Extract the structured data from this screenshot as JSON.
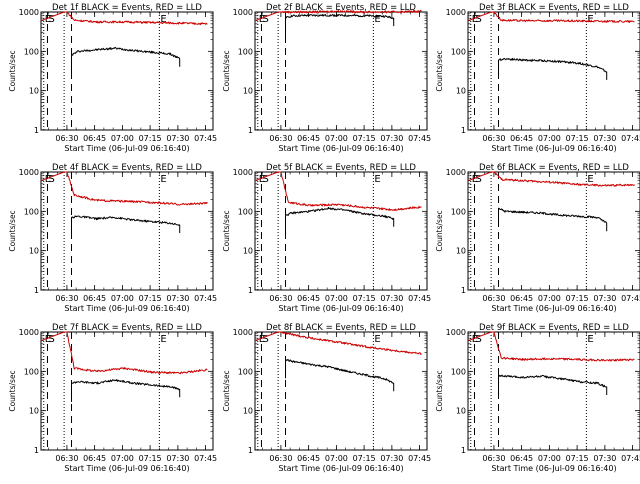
{
  "colors": {
    "events": "#000000",
    "lld": "#cc0000",
    "axes": "#000000",
    "background": "#ffffff"
  },
  "common": {
    "ylabel": "Counts/sec",
    "xlabel": "Start Time (06-Jul-09 06:16:40)",
    "xtick_labels": [
      "06:30",
      "06:45",
      "07:00",
      "07:15",
      "07:30",
      "07:45"
    ],
    "ytick_labels": [
      "1",
      "10",
      "100",
      "1000"
    ],
    "marker_labels": [
      "E",
      "S",
      "E"
    ]
  },
  "chart_data": [
    {
      "type": "line",
      "title": "Det 1f BLACK = Events, RED = LLD",
      "xlabel": "Start Time (06-Jul-09 06:16:40)",
      "ylabel": "Counts/sec",
      "ylog": true,
      "ylim": [
        1,
        1000
      ],
      "xlim_min": [
        0,
        93
      ],
      "x_markers_min": [
        1.5,
        3.5,
        12.5,
        64
      ],
      "x_dotted_min": [
        1.5,
        12.5,
        64
      ],
      "x_dashed_min": [
        3.5,
        16.5
      ],
      "series": [
        {
          "name": "Events",
          "x_min": [
            16.5,
            20,
            30,
            40,
            50,
            60,
            70,
            75
          ],
          "y": [
            80,
            100,
            110,
            120,
            105,
            95,
            85,
            65
          ]
        },
        {
          "name": "LLD",
          "x_min": [
            14,
            18,
            30,
            45,
            60,
            75,
            90
          ],
          "y": [
            1000,
            620,
            560,
            560,
            540,
            520,
            500
          ]
        }
      ]
    },
    {
      "type": "line",
      "title": "Det 2f BLACK = Events, RED = LLD",
      "xlabel": "Start Time (06-Jul-09 06:16:40)",
      "ylabel": "Counts/sec",
      "ylog": true,
      "ylim": [
        1,
        1000
      ],
      "xlim_min": [
        0,
        93
      ],
      "x_markers_min": [
        1.5,
        3.5,
        12.5,
        64
      ],
      "x_dotted_min": [
        1.5,
        12.5,
        64
      ],
      "x_dashed_min": [
        3.5,
        16.5
      ],
      "series": [
        {
          "name": "Events",
          "x_min": [
            16.5,
            20,
            30,
            45,
            60,
            70,
            75
          ],
          "y": [
            700,
            800,
            820,
            820,
            800,
            780,
            700
          ]
        },
        {
          "name": "LLD",
          "x_min": [
            14,
            18,
            30,
            45,
            60,
            75,
            90
          ],
          "y": [
            1000,
            1000,
            1000,
            1050,
            1000,
            1000,
            1050
          ]
        }
      ]
    },
    {
      "type": "line",
      "title": "Det 3f BLACK = Events, RED = LLD",
      "xlabel": "Start Time (06-Jul-09 06:16:40)",
      "ylabel": "Counts/sec",
      "ylog": true,
      "ylim": [
        1,
        1000
      ],
      "xlim_min": [
        0,
        93
      ],
      "x_markers_min": [
        1.5,
        3.5,
        12.5,
        64
      ],
      "x_dotted_min": [
        1.5,
        12.5,
        64
      ],
      "x_dashed_min": [
        3.5,
        16.5
      ],
      "series": [
        {
          "name": "Events",
          "x_min": [
            16.5,
            20,
            30,
            40,
            50,
            60,
            70,
            75
          ],
          "y": [
            60,
            65,
            60,
            58,
            55,
            50,
            40,
            30
          ]
        },
        {
          "name": "LLD",
          "x_min": [
            14,
            18,
            30,
            45,
            60,
            75,
            90
          ],
          "y": [
            1000,
            620,
            600,
            600,
            590,
            580,
            570
          ]
        }
      ]
    },
    {
      "type": "line",
      "title": "Det 4f BLACK = Events, RED = LLD",
      "xlabel": "Start Time (06-Jul-09 06:16:40)",
      "ylabel": "Counts/sec",
      "ylog": true,
      "ylim": [
        1,
        1000
      ],
      "xlim_min": [
        0,
        93
      ],
      "x_markers_min": [
        1.5,
        3.5,
        12.5,
        64
      ],
      "x_dotted_min": [
        1.5,
        12.5,
        64
      ],
      "x_dashed_min": [
        3.5,
        16.5
      ],
      "series": [
        {
          "name": "Events",
          "x_min": [
            16.5,
            20,
            30,
            40,
            50,
            60,
            70,
            75
          ],
          "y": [
            70,
            75,
            65,
            70,
            60,
            55,
            50,
            45
          ]
        },
        {
          "name": "LLD",
          "x_min": [
            14,
            18,
            30,
            45,
            60,
            75,
            90
          ],
          "y": [
            1000,
            260,
            190,
            180,
            170,
            150,
            160
          ]
        }
      ]
    },
    {
      "type": "line",
      "title": "Det 5f BLACK = Events, RED = LLD",
      "xlabel": "Start Time (06-Jul-09 06:16:40)",
      "ylabel": "Counts/sec",
      "ylog": true,
      "ylim": [
        1,
        1000
      ],
      "xlim_min": [
        0,
        93
      ],
      "x_markers_min": [
        1.5,
        3.5,
        12.5,
        64
      ],
      "x_dotted_min": [
        1.5,
        12.5,
        64
      ],
      "x_dashed_min": [
        3.5,
        16.5
      ],
      "series": [
        {
          "name": "Events",
          "x_min": [
            16.5,
            20,
            30,
            40,
            50,
            60,
            70,
            75
          ],
          "y": [
            80,
            90,
            100,
            120,
            105,
            85,
            75,
            65
          ]
        },
        {
          "name": "LLD",
          "x_min": [
            14,
            18,
            30,
            45,
            60,
            75,
            90
          ],
          "y": [
            1000,
            170,
            140,
            150,
            125,
            110,
            130
          ]
        }
      ]
    },
    {
      "type": "line",
      "title": "Det 6f BLACK = Events, RED = LLD",
      "xlabel": "Start Time (06-Jul-09 06:16:40)",
      "ylabel": "Counts/sec",
      "ylog": true,
      "ylim": [
        1,
        1000
      ],
      "xlim_min": [
        0,
        93
      ],
      "x_markers_min": [
        1.5,
        3.5,
        12.5,
        64
      ],
      "x_dotted_min": [
        1.5,
        12.5,
        64
      ],
      "x_dashed_min": [
        3.5,
        16.5
      ],
      "series": [
        {
          "name": "Events",
          "x_min": [
            16.5,
            20,
            30,
            40,
            50,
            60,
            70,
            75
          ],
          "y": [
            120,
            100,
            95,
            90,
            80,
            75,
            70,
            50
          ]
        },
        {
          "name": "LLD",
          "x_min": [
            14,
            18,
            30,
            45,
            60,
            75,
            90
          ],
          "y": [
            1000,
            650,
            600,
            550,
            480,
            450,
            480
          ]
        }
      ]
    },
    {
      "type": "line",
      "title": "Det 7f BLACK = Events, RED = LLD",
      "xlabel": "Start Time (06-Jul-09 06:16:40)",
      "ylabel": "Counts/sec",
      "ylog": true,
      "ylim": [
        1,
        1000
      ],
      "xlim_min": [
        0,
        93
      ],
      "x_markers_min": [
        1.5,
        3.5,
        12.5,
        64
      ],
      "x_dotted_min": [
        1.5,
        12.5,
        64
      ],
      "x_dashed_min": [
        3.5,
        16.5
      ],
      "series": [
        {
          "name": "Events",
          "x_min": [
            16.5,
            20,
            30,
            40,
            50,
            60,
            70,
            75
          ],
          "y": [
            50,
            55,
            50,
            60,
            50,
            45,
            40,
            35
          ]
        },
        {
          "name": "LLD",
          "x_min": [
            14,
            18,
            30,
            45,
            60,
            75,
            90
          ],
          "y": [
            1000,
            120,
            100,
            120,
            95,
            90,
            110
          ]
        }
      ]
    },
    {
      "type": "line",
      "title": "Det 8f BLACK = Events, RED = LLD",
      "xlabel": "Start Time (06-Jul-09 06:16:40)",
      "ylabel": "Counts/sec",
      "ylog": true,
      "ylim": [
        1,
        1000
      ],
      "xlim_min": [
        0,
        93
      ],
      "x_markers_min": [
        1.5,
        3.5,
        12.5,
        64
      ],
      "x_dotted_min": [
        1.5,
        12.5,
        64
      ],
      "x_dashed_min": [
        3.5,
        16.5
      ],
      "series": [
        {
          "name": "Events",
          "x_min": [
            16.5,
            20,
            30,
            40,
            50,
            60,
            70,
            75
          ],
          "y": [
            200,
            180,
            150,
            130,
            100,
            80,
            65,
            50
          ]
        },
        {
          "name": "LLD",
          "x_min": [
            14,
            18,
            30,
            45,
            60,
            75,
            90
          ],
          "y": [
            1000,
            900,
            700,
            550,
            420,
            340,
            280
          ]
        }
      ]
    },
    {
      "type": "line",
      "title": "Det 9f BLACK = Events, RED = LLD",
      "xlabel": "Start Time (06-Jul-09 06:16:40)",
      "ylabel": "Counts/sec",
      "ylog": true,
      "ylim": [
        1,
        1000
      ],
      "xlim_min": [
        0,
        93
      ],
      "x_markers_min": [
        1.5,
        3.5,
        12.5,
        64
      ],
      "x_dotted_min": [
        1.5,
        12.5,
        64
      ],
      "x_dashed_min": [
        3.5,
        16.5
      ],
      "series": [
        {
          "name": "Events",
          "x_min": [
            16.5,
            20,
            30,
            40,
            50,
            60,
            70,
            75
          ],
          "y": [
            80,
            75,
            70,
            75,
            65,
            55,
            50,
            40
          ]
        },
        {
          "name": "LLD",
          "x_min": [
            14,
            18,
            30,
            45,
            60,
            75,
            90
          ],
          "y": [
            1000,
            220,
            200,
            210,
            200,
            190,
            200
          ]
        }
      ]
    }
  ]
}
